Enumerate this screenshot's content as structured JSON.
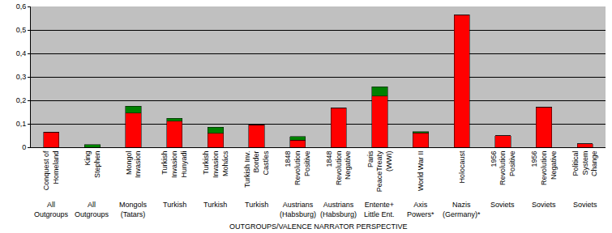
{
  "chart_data": {
    "type": "bar",
    "stacked": true,
    "grid": true,
    "x_label": "OUTGROUPS/VALENCE NARRATOR PERSPECTIVE",
    "categories": [
      "Conquest of\nHomeland",
      "King\nStephen",
      "Mongol\nInvasion",
      "Turkish\nInvasion\nHunyadi",
      "Turkish\nInvasion\nMohács",
      "Turkish Inv.\nBorder\nCastles",
      "1848\nRevolution\nPositive",
      "1848\nRevolution\nNegative",
      "Paris\nPeaceTreaty\n(WWI)",
      "World War II",
      "Holocaust",
      "1956\nRevolution\nPositive",
      "1956\nRevolution\nNegative",
      "Political\nSystem\nChange"
    ],
    "groups": [
      "All\nOutgroups",
      "All\nOutgroups",
      "Mongols\n(Tatars)",
      "Turkish",
      "Turkish",
      "Turkish",
      "Austrians\n(Habsburg)",
      "Austrians\n(Habsburg)",
      "Entente+\nLittle Ent.",
      "Axis\nPowers*",
      "Nazis\n(Germany)*",
      "Soviets",
      "Soviets",
      "Soviets"
    ],
    "series": [
      {
        "color": "#ff0000",
        "values": [
          0.065,
          0,
          0.145,
          0.112,
          0.06,
          0.095,
          0.03,
          0.168,
          0.218,
          0.062,
          0.565,
          0.05,
          0.172,
          0.015
        ]
      },
      {
        "color": "#008000",
        "values": [
          0,
          0.012,
          0.03,
          0.012,
          0.025,
          0,
          0.015,
          0,
          0.04,
          0.005,
          0,
          0,
          0,
          0
        ]
      }
    ],
    "ylim": [
      0,
      0.6
    ],
    "yticks": [
      0,
      {
        "value": 0.1,
        "label": "0,1"
      },
      {
        "value": 0.2,
        "label": "0,2"
      },
      {
        "value": 0.3,
        "label": "0,3"
      },
      {
        "value": 0.4,
        "label": "0,4"
      },
      {
        "value": 0.5,
        "label": "0,5"
      },
      {
        "value": 0.6,
        "label": "0,6"
      }
    ]
  }
}
